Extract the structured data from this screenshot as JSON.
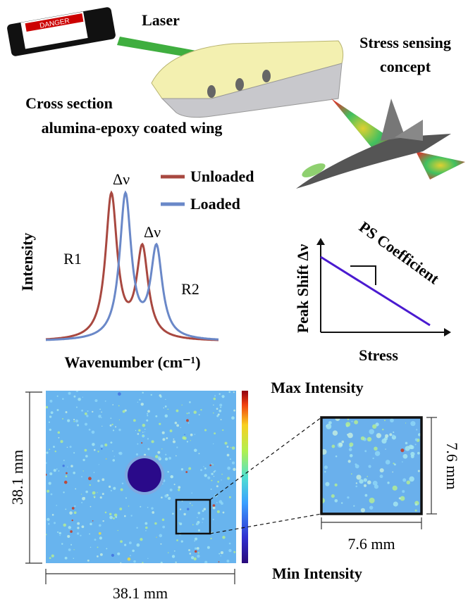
{
  "top": {
    "laser": "Laser",
    "concept": [
      "Stress sensing",
      "concept"
    ],
    "cross_section": [
      "Cross section",
      "alumina-epoxy coated wing"
    ],
    "danger": "DANGER"
  },
  "spectrum": {
    "legend": [
      "Unloaded",
      "Loaded"
    ],
    "shift_labels": [
      "Δν",
      "Δν"
    ],
    "peaks": [
      "R1",
      "R2"
    ],
    "y_label": "Intensity",
    "x_label": "Wavenumber (cm⁻¹)"
  },
  "ps_plot": {
    "title": "PS Coefficient",
    "y_label": "Peak Shift Δν",
    "x_label": "Stress"
  },
  "map": {
    "max": "Max Intensity",
    "min": "Min Intensity",
    "height": "38.1 mm",
    "width": "38.1 mm",
    "inset_height": "7.6 mm",
    "inset_width": "7.6 mm"
  }
}
